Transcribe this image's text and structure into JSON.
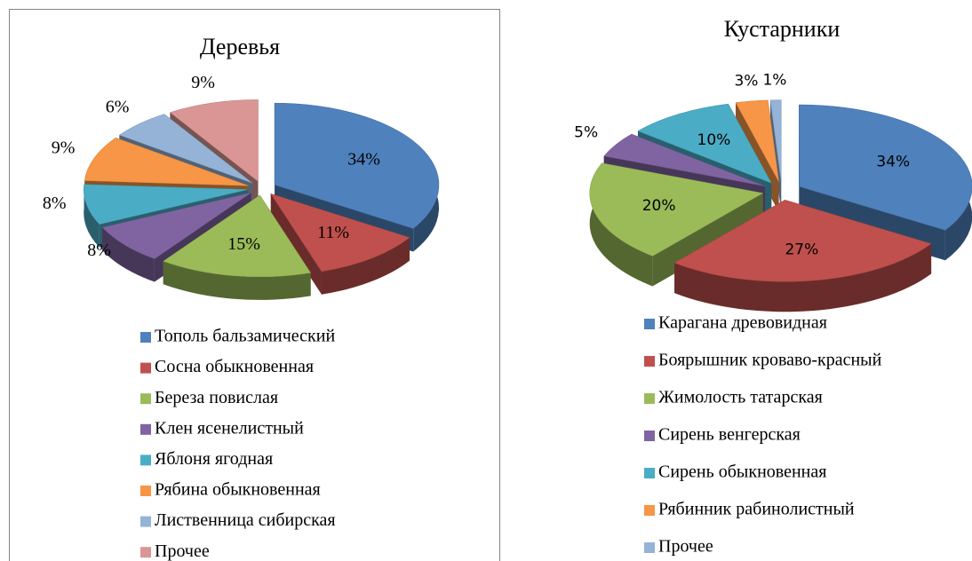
{
  "chart_data": [
    {
      "type": "pie",
      "title": "Деревья",
      "categories": [
        "Тополь бальзамический",
        "Сосна обыкновенная",
        "Береза повислая",
        "Клен ясенелистный",
        "Яблоня ягодная",
        "Рябина обыкновенная",
        "Лиственница сибирская",
        "Прочее"
      ],
      "values": [
        34,
        11,
        15,
        8,
        8,
        9,
        6,
        9
      ],
      "value_labels": [
        "34%",
        "11%",
        "15%",
        "8%",
        "8%",
        "9%",
        "6%",
        "9%"
      ],
      "colors": [
        "#4f81bd",
        "#c0504d",
        "#9bbb59",
        "#8064a2",
        "#4bacc6",
        "#f79646",
        "#95b3d7",
        "#d99694"
      ],
      "legend": "bottom"
    },
    {
      "type": "pie",
      "title": "Кустарники",
      "categories": [
        "Карагана древовидная",
        "Боярышник кроваво-красный",
        "Жимолость татарская",
        "Сирень венгерская",
        "Сирень обыкновенная",
        "Рябинник рабинолистный",
        "Прочее"
      ],
      "values": [
        34,
        27,
        20,
        5,
        10,
        3,
        1
      ],
      "value_labels": [
        "34%",
        "27%",
        "20%",
        "5%",
        "10%",
        "3%",
        "1%"
      ],
      "colors": [
        "#4f81bd",
        "#c0504d",
        "#9bbb59",
        "#8064a2",
        "#4bacc6",
        "#f79646",
        "#95b3d7"
      ],
      "legend": "bottom"
    }
  ]
}
